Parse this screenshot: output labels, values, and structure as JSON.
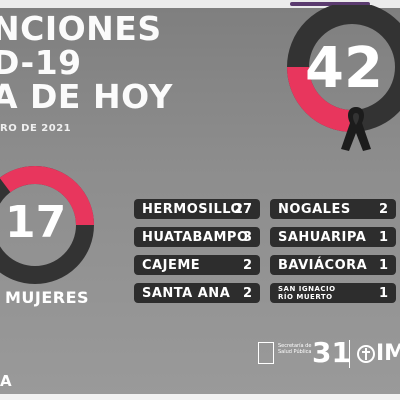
{
  "headline": {
    "line1": "NCIONES",
    "line2": "D-19",
    "line3": "A DE HOY"
  },
  "date": "RO DE 2021",
  "deaths_total": "42",
  "women": {
    "count": "17",
    "label": "MUJERES"
  },
  "ring_colors": {
    "accent": "#e8365d",
    "dark": "#333333"
  },
  "municipalities": [
    {
      "name": "HERMOSILLO",
      "count": "27"
    },
    {
      "name": "HUATABAMPO",
      "count": "3"
    },
    {
      "name": "CAJEME",
      "count": "2"
    },
    {
      "name": "SANTA ANA",
      "count": "2"
    },
    {
      "name": "NOGALES",
      "count": "2"
    },
    {
      "name": "SAHUARIPA",
      "count": "1"
    },
    {
      "name": "BAVIÁCORA",
      "count": "1"
    },
    {
      "name": "SAN IGNACIO RÍO MUERTO",
      "count": "1"
    }
  ],
  "footer": {
    "org_text": "Secretaría de Salud Pública",
    "number": "31",
    "imss": "IM",
    "left_fragment": "A"
  }
}
